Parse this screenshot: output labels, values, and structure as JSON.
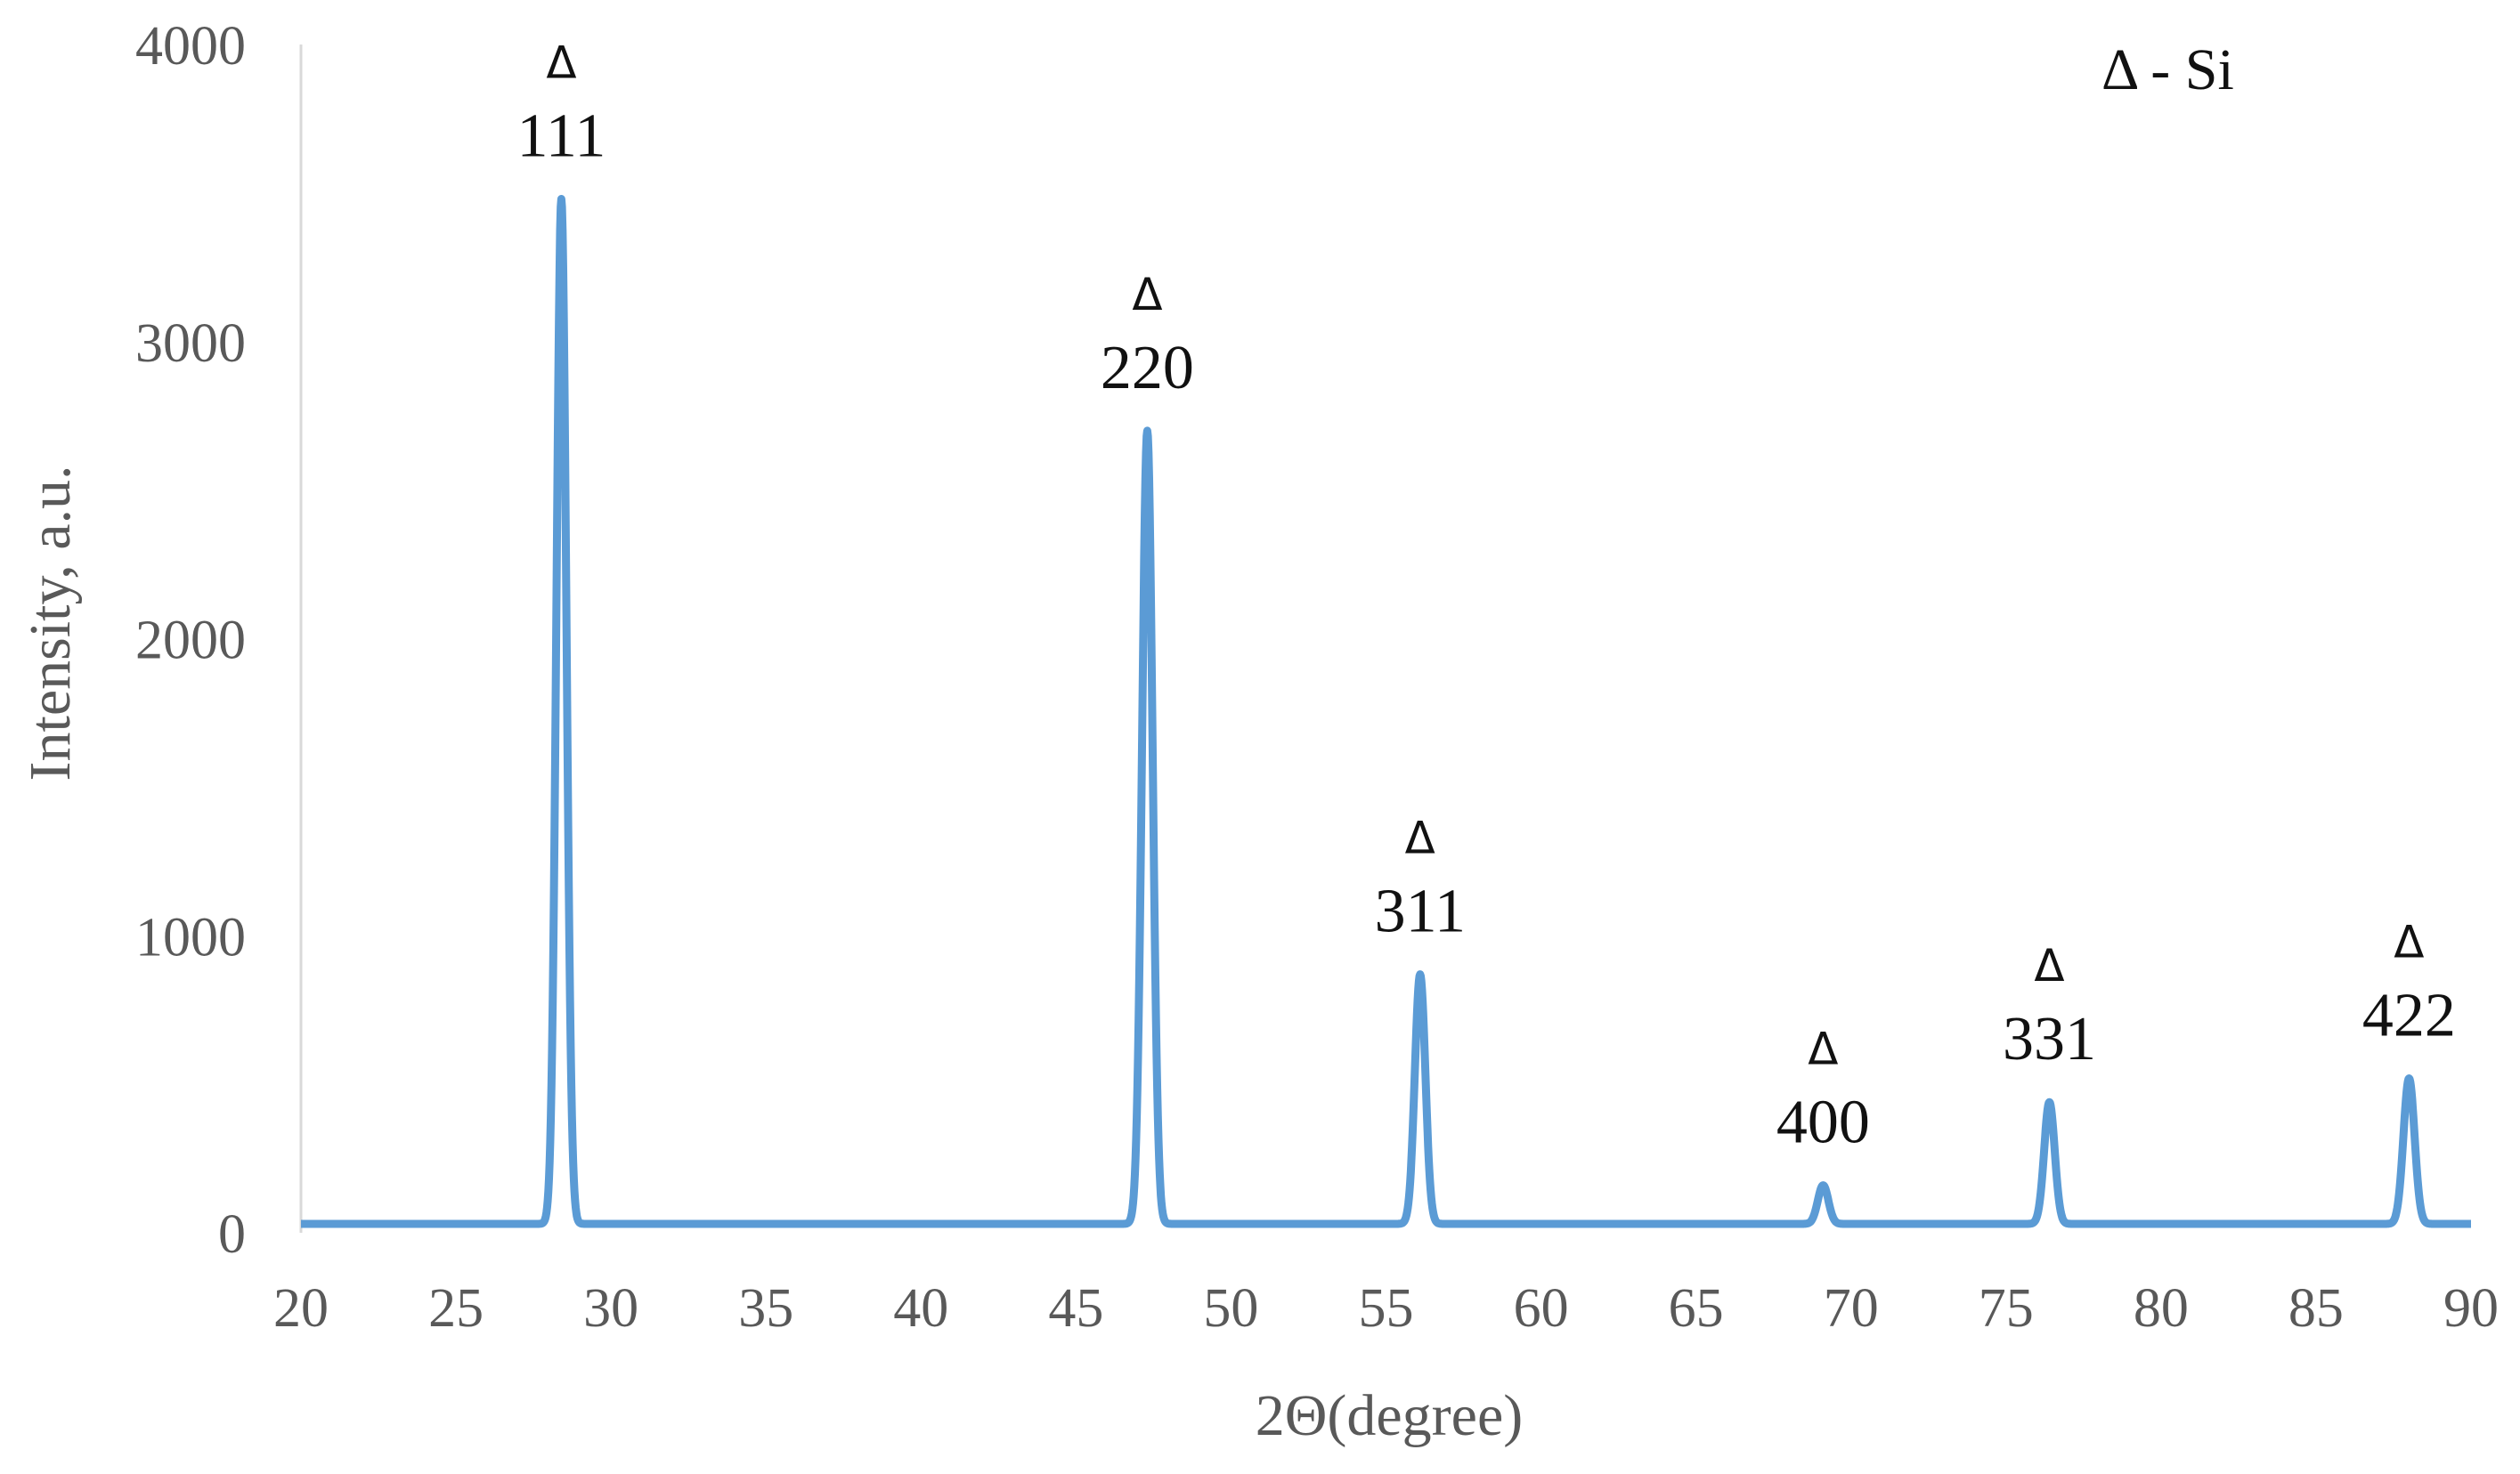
{
  "chart_data": {
    "type": "line",
    "title": "",
    "xlabel": "2Θ(degree)",
    "ylabel": "Intensity, a.u.",
    "xlim": [
      20,
      90
    ],
    "ylim": [
      0,
      4000
    ],
    "x_ticks": [
      "20",
      "25",
      "30",
      "35",
      "40",
      "45",
      "50",
      "55",
      "60",
      "65",
      "70",
      "75",
      "80",
      "85",
      "90"
    ],
    "y_ticks": [
      "0",
      "1000",
      "2000",
      "3000",
      "4000"
    ],
    "grid": false,
    "legend_text": "Δ - Si",
    "legend_position": "top-right",
    "series_color": "#5b9bd5",
    "baseline": 30,
    "series": [
      {
        "peaks": [
          {
            "x": 28.4,
            "y": 3480,
            "width": 0.16
          },
          {
            "x": 47.3,
            "y": 2700,
            "width": 0.17
          },
          {
            "x": 56.1,
            "y": 870,
            "width": 0.17
          },
          {
            "x": 69.1,
            "y": 160,
            "width": 0.17
          },
          {
            "x": 76.4,
            "y": 440,
            "width": 0.17
          },
          {
            "x": 88.0,
            "y": 520,
            "width": 0.18
          }
        ]
      }
    ],
    "annotations": [
      {
        "x": 28.4,
        "y": 3480,
        "marker": "Δ",
        "label": "111"
      },
      {
        "x": 47.3,
        "y": 2700,
        "marker": "Δ",
        "label": "220"
      },
      {
        "x": 56.1,
        "y": 870,
        "marker": "Δ",
        "label": "311"
      },
      {
        "x": 69.1,
        "y": 160,
        "marker": "Δ",
        "label": "400"
      },
      {
        "x": 76.4,
        "y": 440,
        "marker": "Δ",
        "label": "331"
      },
      {
        "x": 88.0,
        "y": 520,
        "marker": "Δ",
        "label": "422"
      }
    ]
  }
}
